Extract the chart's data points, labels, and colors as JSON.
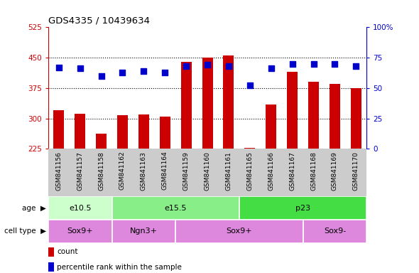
{
  "title": "GDS4335 / 10439634",
  "samples": [
    "GSM841156",
    "GSM841157",
    "GSM841158",
    "GSM841162",
    "GSM841163",
    "GSM841164",
    "GSM841159",
    "GSM841160",
    "GSM841161",
    "GSM841165",
    "GSM841166",
    "GSM841167",
    "GSM841168",
    "GSM841169",
    "GSM841170"
  ],
  "counts": [
    320,
    312,
    263,
    308,
    310,
    305,
    440,
    450,
    455,
    228,
    335,
    415,
    390,
    385,
    375
  ],
  "percentiles": [
    67,
    66,
    60,
    63,
    64,
    63,
    68,
    69,
    68,
    52,
    66,
    70,
    70,
    70,
    68
  ],
  "ylim_left": [
    225,
    525
  ],
  "ylim_right": [
    0,
    100
  ],
  "yticks_left": [
    225,
    300,
    375,
    450,
    525
  ],
  "yticks_right": [
    0,
    25,
    50,
    75,
    100
  ],
  "bar_color": "#cc0000",
  "dot_color": "#0000cc",
  "bg_color": "#ffffff",
  "age_groups": [
    {
      "label": "e10.5",
      "start": 0,
      "end": 2,
      "color": "#ccffcc"
    },
    {
      "label": "e15.5",
      "start": 3,
      "end": 8,
      "color": "#88ee88"
    },
    {
      "label": "p23",
      "start": 9,
      "end": 14,
      "color": "#44dd44"
    }
  ],
  "cell_groups": [
    {
      "label": "Sox9+",
      "start": 0,
      "end": 2,
      "color": "#dd88dd"
    },
    {
      "label": "Ngn3+",
      "start": 3,
      "end": 5,
      "color": "#dd88dd"
    },
    {
      "label": "Sox9+",
      "start": 6,
      "end": 11,
      "color": "#dd88dd"
    },
    {
      "label": "Sox9-",
      "start": 12,
      "end": 14,
      "color": "#dd88dd"
    }
  ],
  "tick_color_left": "#cc0000",
  "tick_color_right": "#0000cc",
  "bar_width": 0.5,
  "dot_size": 40,
  "xtick_bg": "#cccccc"
}
